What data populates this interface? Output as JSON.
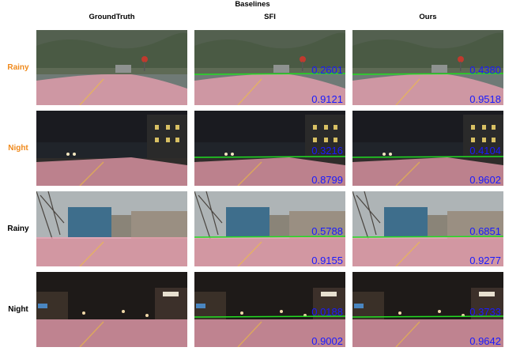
{
  "header": {
    "group_title": "Baselines",
    "columns": [
      {
        "label": "GroundTruth"
      },
      {
        "label": "SFI"
      },
      {
        "label": "Ours"
      }
    ]
  },
  "rows": [
    {
      "label": "Rainy",
      "label_color": "#f08a1c",
      "scene": "rainy-forest-road",
      "cells": [
        {
          "column": "GroundTruth",
          "horizon": false
        },
        {
          "column": "SFI",
          "horizon": true,
          "upper_score": "0.2601",
          "lower_score": "0.9121"
        },
        {
          "column": "Ours",
          "horizon": true,
          "upper_score": "0.4380",
          "lower_score": "0.9518"
        }
      ]
    },
    {
      "label": "Night",
      "label_color": "#f08a1c",
      "scene": "night-campus-road",
      "cells": [
        {
          "column": "GroundTruth",
          "horizon": false
        },
        {
          "column": "SFI",
          "horizon": true,
          "upper_score": "0.3216",
          "lower_score": "0.8799"
        },
        {
          "column": "Ours",
          "horizon": true,
          "upper_score": "0.4104",
          "lower_score": "0.9602"
        }
      ]
    },
    {
      "label": "Rainy",
      "label_color": "#000000",
      "scene": "rainy-campus-road",
      "cells": [
        {
          "column": "GroundTruth",
          "horizon": false
        },
        {
          "column": "SFI",
          "horizon": true,
          "upper_score": "0.5788",
          "lower_score": "0.9155"
        },
        {
          "column": "Ours",
          "horizon": true,
          "upper_score": "0.6851",
          "lower_score": "0.9277"
        }
      ]
    },
    {
      "label": "Night",
      "label_color": "#000000",
      "scene": "night-town-street",
      "cells": [
        {
          "column": "GroundTruth",
          "horizon": false
        },
        {
          "column": "SFI",
          "horizon": true,
          "upper_score": "0.0188",
          "lower_score": "0.9002"
        },
        {
          "column": "Ours",
          "horizon": true,
          "upper_score": "0.3733",
          "lower_score": "0.9642"
        }
      ]
    }
  ],
  "colors": {
    "overlay": "#f2a2b4",
    "horizon_line": "#22dd22",
    "score_text": "#1a1aff",
    "highlight_label": "#f08a1c"
  }
}
